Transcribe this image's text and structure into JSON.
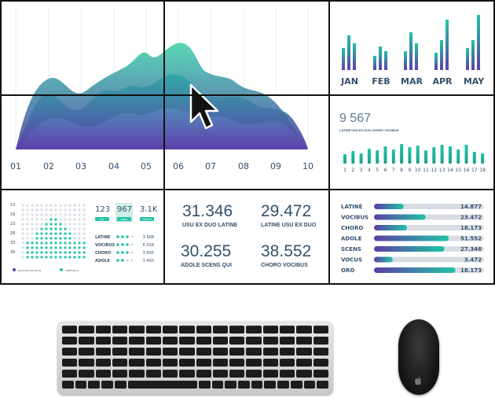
{
  "area_chart": {
    "x_labels": [
      "01",
      "02",
      "03",
      "04",
      "05",
      "06",
      "07",
      "08",
      "09",
      "10"
    ]
  },
  "bar_months": {
    "months": [
      "JAN",
      "FEB",
      "MAR",
      "APR",
      "MAY"
    ]
  },
  "kpi_bars": {
    "value": "9 567",
    "caption": "LATINE USU EX DUO CHORO VOCIBUS",
    "x_labels": [
      "1",
      "2",
      "3",
      "4",
      "5",
      "6",
      "7",
      "8",
      "9",
      "10",
      "11",
      "12",
      "13",
      "14",
      "15",
      "16",
      "17",
      "18"
    ]
  },
  "dot_panel": {
    "row_labels": [
      "13",
      "18",
      "23",
      "28",
      "33",
      "38"
    ],
    "stats": [
      {
        "value": "123",
        "label": "DAY"
      },
      {
        "value": "967",
        "label": "WEEK"
      },
      {
        "value": "3.1K",
        "label": "MONTH"
      }
    ],
    "list": [
      {
        "label": "LATINE",
        "value": "3 568"
      },
      {
        "label": "VOCIBUS",
        "value": "6 034"
      },
      {
        "label": "CHORO",
        "value": "3 835"
      },
      {
        "label": "ADOLE",
        "value": "1 450"
      }
    ],
    "legend": [
      "DUIS AUT DOLOR IN",
      "TEMPOR IN"
    ]
  },
  "numbers": [
    {
      "value": "31.346",
      "label": "USU EX DUO LATINE"
    },
    {
      "value": "29.472",
      "label": "LATINE USU EX DUO"
    },
    {
      "value": "30.255",
      "label": "ADOLE SCENS QUI"
    },
    {
      "value": "38.552",
      "label": "CHORO VOCIBUS"
    }
  ],
  "progress": [
    {
      "label": "LATINE",
      "value": "14.877",
      "fraction": 0.27
    },
    {
      "label": "VOCIBUS",
      "value": "23.472",
      "fraction": 0.47
    },
    {
      "label": "CHORO",
      "value": "18.173",
      "fraction": 0.3
    },
    {
      "label": "ADOLE",
      "value": "51.552",
      "fraction": 0.68
    },
    {
      "label": "SCENS",
      "value": "27.346",
      "fraction": 0.64
    },
    {
      "label": "VOCUS",
      "value": "3.472",
      "fraction": 0.17
    },
    {
      "label": "ORO",
      "value": "18.173",
      "fraction": 0.74
    }
  ],
  "colors": {
    "teal": "#22c3a6",
    "purple": "#5b3fa8",
    "navy": "#34506c",
    "bezel": "#111111"
  }
}
